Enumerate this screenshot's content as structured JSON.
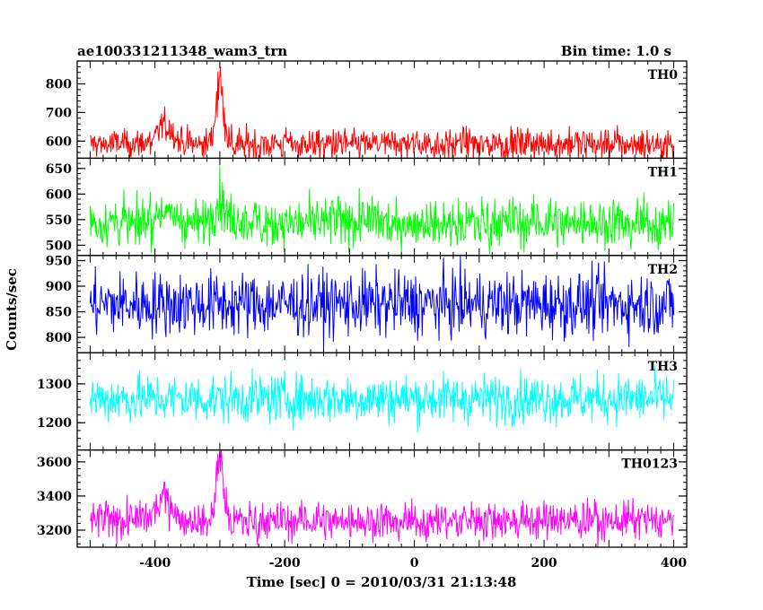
{
  "header": {
    "title": "ae100331211348_wam3_trn",
    "bin_time": "Bin time: 1.0 s"
  },
  "chart_data": {
    "type": "line",
    "ylabel": "Counts/sec",
    "xlabel": "Time [sec] 0 = 2010/03/31 21:13:48",
    "xlim": [
      -520,
      420
    ],
    "xticks": [
      -400,
      -200,
      0,
      200,
      400
    ],
    "x_range": [
      -500,
      400
    ],
    "bin_time_s": 1.0,
    "grid": false,
    "panels": [
      {
        "name": "TH0",
        "color": "#ff0000",
        "ylim": [
          540,
          880
        ],
        "yticks": [
          600,
          700,
          800
        ],
        "baseline": 590,
        "noise": 28,
        "features": [
          {
            "center": -385,
            "width": 12,
            "amp": 65
          },
          {
            "center": -300,
            "width": 6,
            "amp": 220
          }
        ]
      },
      {
        "name": "TH1",
        "color": "#00ff00",
        "ylim": [
          480,
          670
        ],
        "yticks": [
          500,
          550,
          600,
          650
        ],
        "baseline": 545,
        "noise": 24,
        "features": [
          {
            "center": -385,
            "width": 14,
            "amp": 20
          },
          {
            "center": -300,
            "width": 8,
            "amp": 45
          }
        ]
      },
      {
        "name": "TH2",
        "color": "#0000ff",
        "ylim": [
          770,
          960
        ],
        "yticks": [
          800,
          850,
          900,
          950
        ],
        "baseline": 865,
        "noise": 32,
        "features": []
      },
      {
        "name": "TH3",
        "color": "#00ffff",
        "ylim": [
          1130,
          1380
        ],
        "yticks": [
          1200,
          1300
        ],
        "baseline": 1262,
        "noise": 32,
        "features": []
      },
      {
        "name": "TH0123",
        "color": "#ff00ff",
        "ylim": [
          3100,
          3670
        ],
        "yticks": [
          3200,
          3400,
          3600
        ],
        "baseline": 3255,
        "noise": 55,
        "features": [
          {
            "center": -385,
            "width": 12,
            "amp": 140
          },
          {
            "center": -300,
            "width": 6,
            "amp": 330
          }
        ]
      }
    ]
  }
}
